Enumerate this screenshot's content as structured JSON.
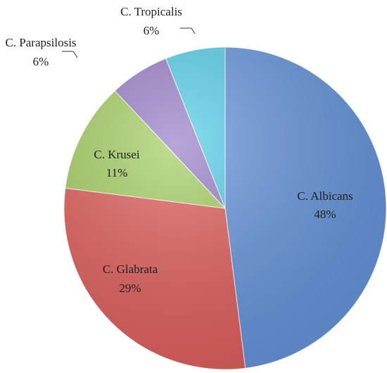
{
  "chart_data": {
    "type": "pie",
    "categories": [
      "C. Albicans",
      "C. Glabrata",
      "C. Krusei",
      "C. Parapsilosis",
      "C. Tropicalis"
    ],
    "values": [
      48,
      29,
      11,
      6,
      6
    ],
    "value_labels": [
      "48%",
      "29%",
      "11%",
      "6%",
      "6%"
    ],
    "colors": [
      "#6596dd",
      "#e25f5b",
      "#a6d063",
      "#9a80c9",
      "#55cfe9"
    ]
  }
}
